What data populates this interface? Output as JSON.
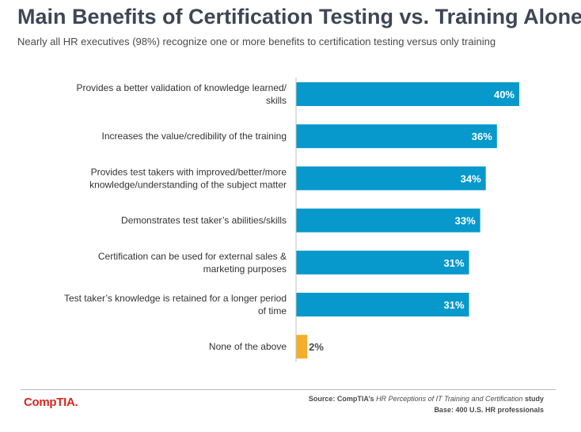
{
  "header": {
    "title": "Main Benefits of Certification Testing vs. Training Alone",
    "subtitle": "Nearly all HR executives (98%) recognize one or more benefits to certification testing versus only training"
  },
  "chart_data": {
    "type": "bar",
    "orientation": "horizontal",
    "title": "",
    "xlabel": "",
    "ylabel": "",
    "xlim": [
      0,
      50
    ],
    "grid": false,
    "legend": "none",
    "categories": [
      [
        "Provides a better validation of knowledge learned/",
        "skills"
      ],
      [
        "Increases the value/credibility of the training"
      ],
      [
        "Provides test takers with improved/better/more",
        "knowledge/understanding of the subject matter"
      ],
      [
        "Demonstrates test taker’s abilities/skills"
      ],
      [
        "Certification can be used for external sales &",
        "marketing purposes"
      ],
      [
        "Test taker’s knowledge is retained for a longer period",
        "of time"
      ],
      [
        "None of the above"
      ]
    ],
    "values": [
      40,
      36,
      34,
      33,
      31,
      31,
      2
    ],
    "data_labels": [
      "40%",
      "36%",
      "34%",
      "33%",
      "31%",
      "31%",
      "2%"
    ],
    "colors": [
      "#0799cc",
      "#0799cc",
      "#0799cc",
      "#0799cc",
      "#0799cc",
      "#0799cc",
      "#f4ae2b"
    ]
  },
  "footer": {
    "logo_text": "CompTIA.",
    "source_prefix": "Source: CompTIA’s ",
    "source_study": "HR Perceptions of IT Training and Certification",
    "source_suffix": " study",
    "base": "Base: 400 U.S. HR professionals"
  }
}
